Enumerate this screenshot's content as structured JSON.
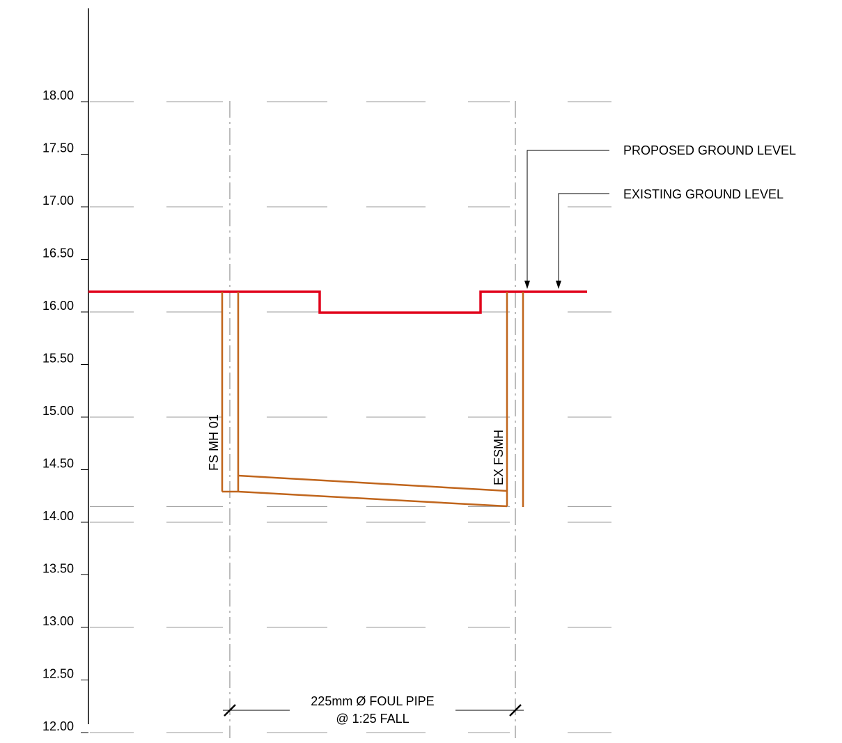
{
  "levels": [
    "18.00",
    "17.50",
    "17.00",
    "16.50",
    "16.00",
    "15.50",
    "15.00",
    "14.50",
    "14.00",
    "13.50",
    "13.00",
    "12.50",
    "12.00"
  ],
  "level_min": 12.0,
  "level_max": 18.0,
  "callouts": {
    "proposed": "PROPOSED GROUND LEVEL",
    "existing": "EXISTING GROUND LEVEL"
  },
  "manholes": {
    "left": "FS MH 01",
    "right": "EX FSMH"
  },
  "pipe_note": {
    "line1": "225mm Ø FOUL PIPE",
    "line2": "@ 1:25 FALL"
  },
  "colors": {
    "ground": "#e1001a",
    "pipe": "#c0651c",
    "grid": "#9a9a9a",
    "ink": "#000000"
  }
}
